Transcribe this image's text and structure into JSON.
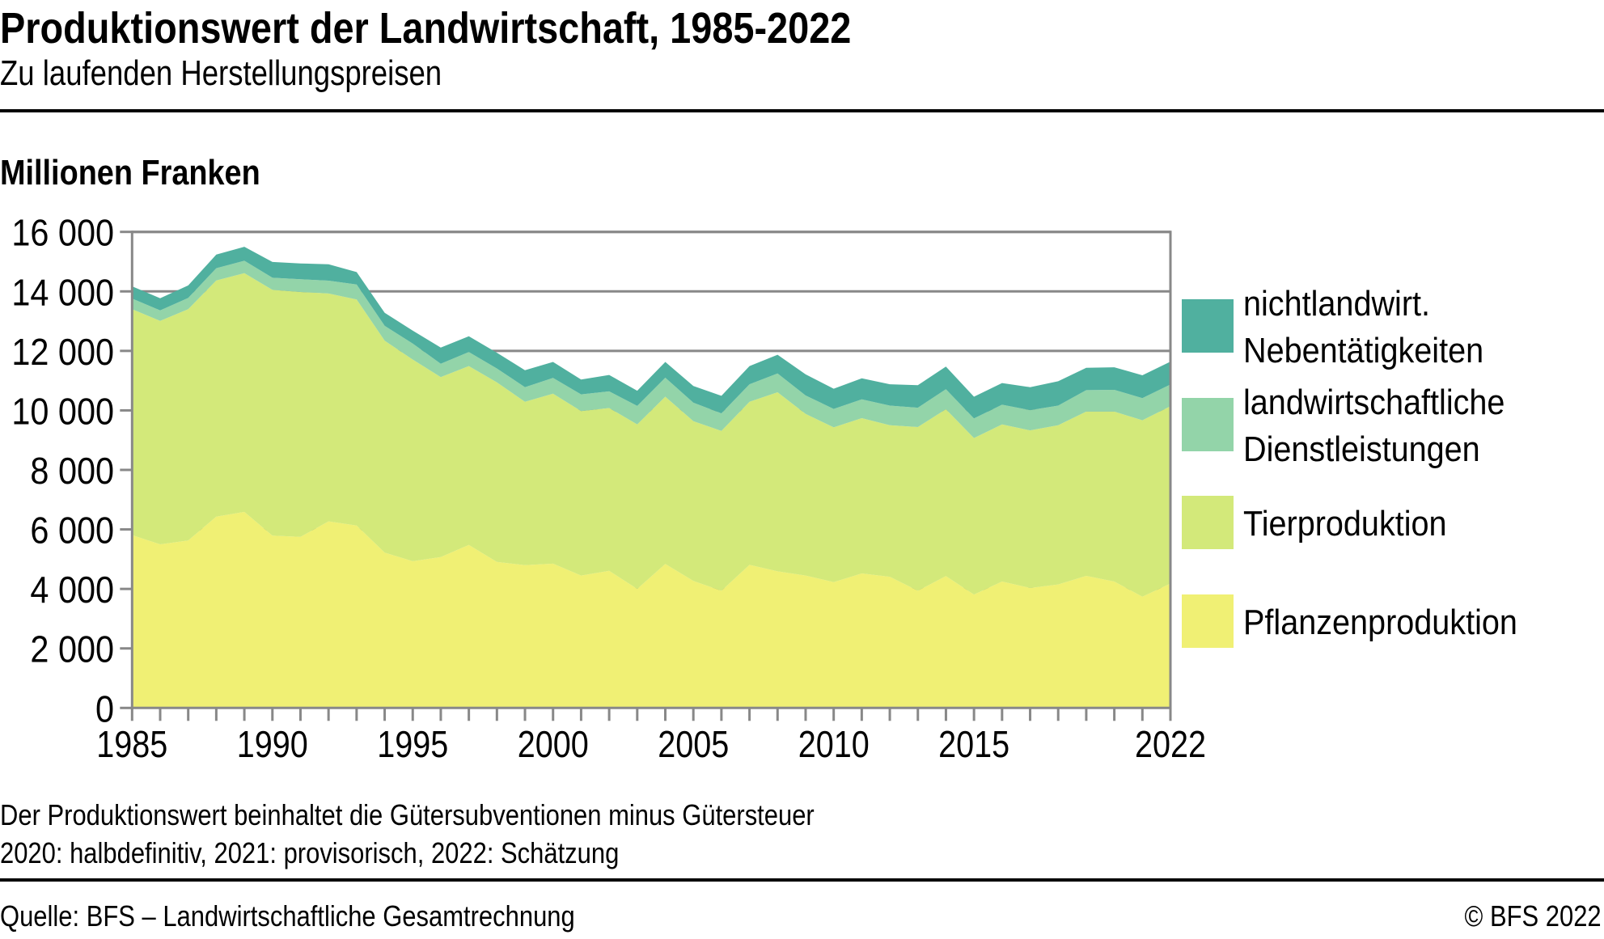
{
  "header": {
    "title": "Produktionswert der Landwirtschaft, 1985-2022",
    "subtitle": "Zu laufenden Herstellungspreisen"
  },
  "footer": {
    "notes": [
      "Der Produktionswert beinhaltet die Gütersubventionen minus Gütersteuer",
      "2020: halbdefinitiv, 2021: provisorisch, 2022: Schätzung"
    ],
    "source": "Quelle: BFS – Landwirtschaftliche Gesamtrechnung",
    "copyright": "© BFS 2022"
  },
  "chart_data": {
    "type": "area",
    "stacked": true,
    "title": "Produktionswert der Landwirtschaft, 1985-2022",
    "subtitle": "Zu laufenden Herstellungspreisen",
    "xlabel": "",
    "ylabel": "Millionen Franken",
    "ylim": [
      0,
      16000
    ],
    "yticks": [
      0,
      2000,
      4000,
      6000,
      8000,
      10000,
      12000,
      14000,
      16000
    ],
    "ytick_labels": [
      "0",
      "2 000",
      "4 000",
      "6 000",
      "8 000",
      "10 000",
      "12 000",
      "14 000",
      "16 000"
    ],
    "xlim": [
      1985,
      2022
    ],
    "xtick_labels": [
      "1985",
      "1990",
      "1995",
      "2000",
      "2005",
      "2010",
      "2015",
      "2022"
    ],
    "xtick_label_years": [
      1985,
      1990,
      1995,
      2000,
      2005,
      2010,
      2015,
      2022
    ],
    "grid": "horizontal",
    "legend_position": "right",
    "x": [
      1985,
      1986,
      1987,
      1988,
      1989,
      1990,
      1991,
      1992,
      1993,
      1994,
      1995,
      1996,
      1997,
      1998,
      1999,
      2000,
      2001,
      2002,
      2003,
      2004,
      2005,
      2006,
      2007,
      2008,
      2009,
      2010,
      2011,
      2012,
      2013,
      2014,
      2015,
      2016,
      2017,
      2018,
      2019,
      2020,
      2021,
      2022
    ],
    "series": [
      {
        "name": "Pflanzenproduktion",
        "color": "#f0f074",
        "values": [
          5810,
          5500,
          5630,
          6430,
          6590,
          5790,
          5750,
          6270,
          6130,
          5220,
          4930,
          5070,
          5480,
          4910,
          4800,
          4850,
          4450,
          4610,
          4000,
          4840,
          4270,
          3940,
          4810,
          4590,
          4450,
          4230,
          4520,
          4410,
          3940,
          4430,
          3810,
          4250,
          4030,
          4150,
          4440,
          4250,
          3740,
          4180
        ]
      },
      {
        "name": "Tierproduktion",
        "color": "#d3e97a",
        "values": [
          7590,
          7510,
          7770,
          7940,
          8020,
          8260,
          8230,
          7660,
          7600,
          7120,
          6780,
          6050,
          6010,
          6030,
          5490,
          5710,
          5530,
          5470,
          5530,
          5620,
          5370,
          5370,
          5480,
          6020,
          5430,
          5200,
          5220,
          5090,
          5500,
          5610,
          5260,
          5280,
          5300,
          5350,
          5520,
          5710,
          5930,
          5960
        ]
      },
      {
        "name": "landwirtschaftliche Dienstleistungen",
        "color": "#93d4a9",
        "values": [
          360,
          350,
          380,
          410,
          420,
          410,
          430,
          430,
          500,
          500,
          540,
          450,
          470,
          470,
          490,
          530,
          560,
          560,
          620,
          640,
          620,
          590,
          590,
          630,
          620,
          620,
          630,
          660,
          650,
          670,
          660,
          660,
          680,
          660,
          720,
          730,
          740,
          730
        ]
      },
      {
        "name": "nichtlandwirt. Nebentätigkeiten",
        "color": "#50b09f",
        "values": [
          410,
          410,
          420,
          460,
          470,
          530,
          530,
          550,
          420,
          440,
          430,
          540,
          530,
          530,
          570,
          540,
          500,
          550,
          510,
          530,
          560,
          590,
          610,
          630,
          710,
          680,
          710,
          720,
          760,
          760,
          730,
          730,
          770,
          820,
          750,
          760,
          770,
          770
        ]
      }
    ],
    "legend": [
      {
        "label_lines": [
          "nichtlandwirt.",
          "Nebentätigkeiten"
        ],
        "color": "#50b09f"
      },
      {
        "label_lines": [
          "landwirtschaftliche",
          "Dienstleistungen"
        ],
        "color": "#93d4a9"
      },
      {
        "label_lines": [
          "Tierproduktion"
        ],
        "color": "#d3e97a"
      },
      {
        "label_lines": [
          "Pflanzenproduktion"
        ],
        "color": "#f0f074"
      }
    ]
  }
}
